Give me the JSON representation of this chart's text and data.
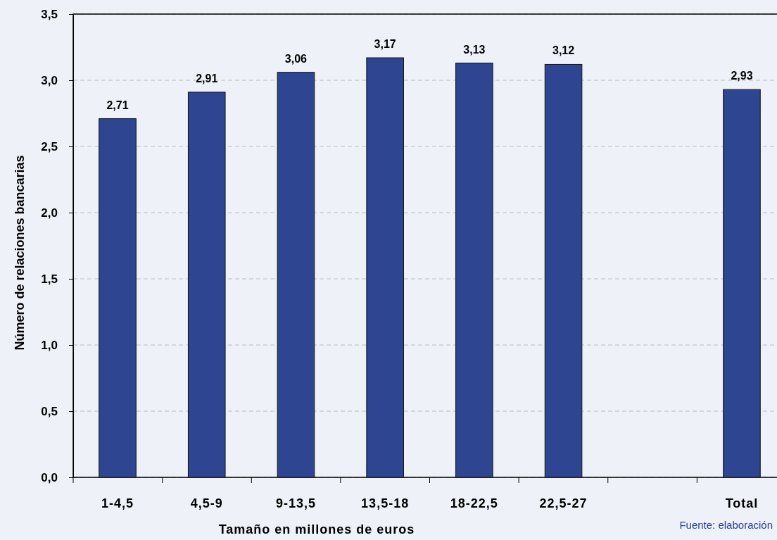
{
  "chart_data": {
    "type": "bar",
    "xlabel": "Tamaño en millones de euros",
    "ylabel": "Número de relaciones bancarias",
    "categories": [
      "1-4,5",
      "4,5-9",
      "9-13,5",
      "13,5-18",
      "18-22,5",
      "22,5-27",
      null,
      "Total"
    ],
    "values": [
      2.71,
      2.91,
      3.06,
      3.17,
      3.13,
      3.12,
      null,
      2.93
    ],
    "value_labels": [
      "2,71",
      "2,91",
      "3,06",
      "3,17",
      "3,13",
      "3,12",
      null,
      "2,93"
    ],
    "color": "#2e4591",
    "ylim": [
      0,
      3.5
    ],
    "yticks": [
      {
        "value": 0,
        "label": "0,0"
      },
      {
        "value": 0.5,
        "label": "0,5"
      },
      {
        "value": 1,
        "label": "1,0"
      },
      {
        "value": 1.5,
        "label": "1,5"
      },
      {
        "value": 2,
        "label": "2,0"
      },
      {
        "value": 2.5,
        "label": "2,5"
      },
      {
        "value": 3,
        "label": "3,0"
      },
      {
        "value": 3.5,
        "label": "3,5"
      }
    ],
    "grid": "y",
    "annotations": [
      "Fuente: elaboración"
    ]
  }
}
